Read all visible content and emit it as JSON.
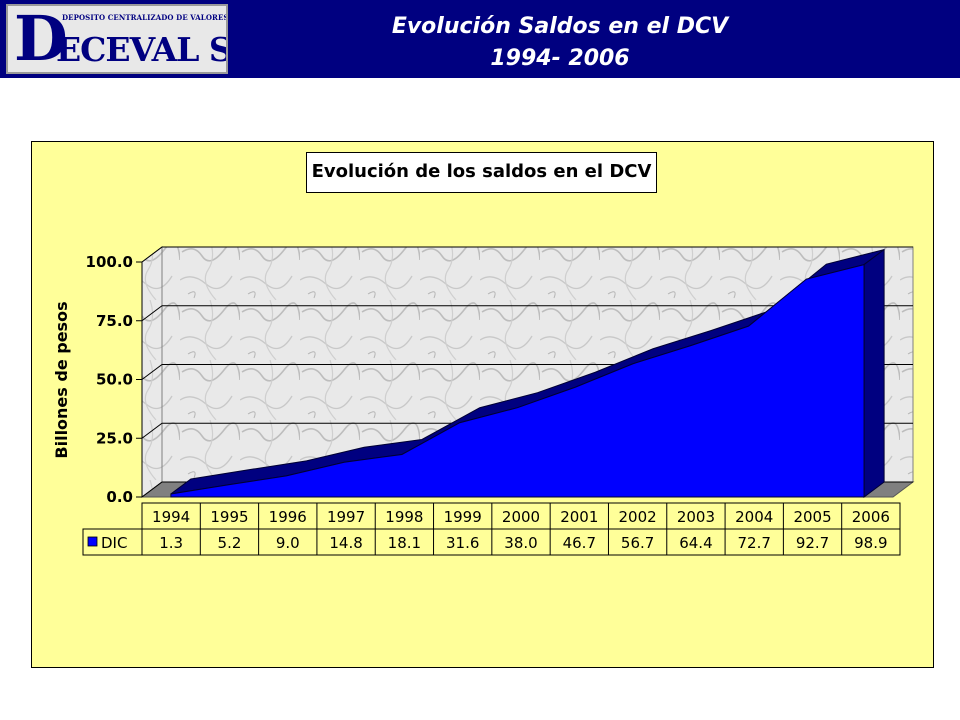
{
  "header": {
    "logo_top": "DEPOSITO CENTRALIZADO DE VALORES DE COLOMBIA",
    "logo_d": "D",
    "logo_rest": "ECEVAL S.A.",
    "title_line1": "Evolución Saldos en el DCV",
    "title_line2": "1994- 2006"
  },
  "colors": {
    "header_bg": "#000080",
    "chart_bg": "#ffff99",
    "series_fill": "#0000ff",
    "series_side": "#000080"
  },
  "chart_data": {
    "type": "area",
    "title": "Evolución de los saldos en el DCV",
    "ylabel": "Billones de pesos",
    "xlabel": "",
    "ylim": [
      0,
      100
    ],
    "yticks": [
      "0.0",
      "25.0",
      "50.0",
      "75.0",
      "100.0"
    ],
    "categories": [
      "1994",
      "1995",
      "1996",
      "1997",
      "1998",
      "1999",
      "2000",
      "2001",
      "2002",
      "2003",
      "2004",
      "2005",
      "2006"
    ],
    "series": [
      {
        "name": "DIC",
        "values": [
          1.3,
          5.2,
          9.0,
          14.8,
          18.1,
          31.6,
          38.0,
          46.7,
          56.7,
          64.4,
          72.7,
          92.7,
          98.9
        ],
        "labels": [
          "1.3",
          "5.2",
          "9.0",
          "14.8",
          "18.1",
          "31.6",
          "38.0",
          "46.7",
          "56.7",
          "64.4",
          "72.7",
          "92.7",
          "98.9"
        ]
      }
    ],
    "grid": true,
    "legend": "data-table",
    "data_table": true
  }
}
